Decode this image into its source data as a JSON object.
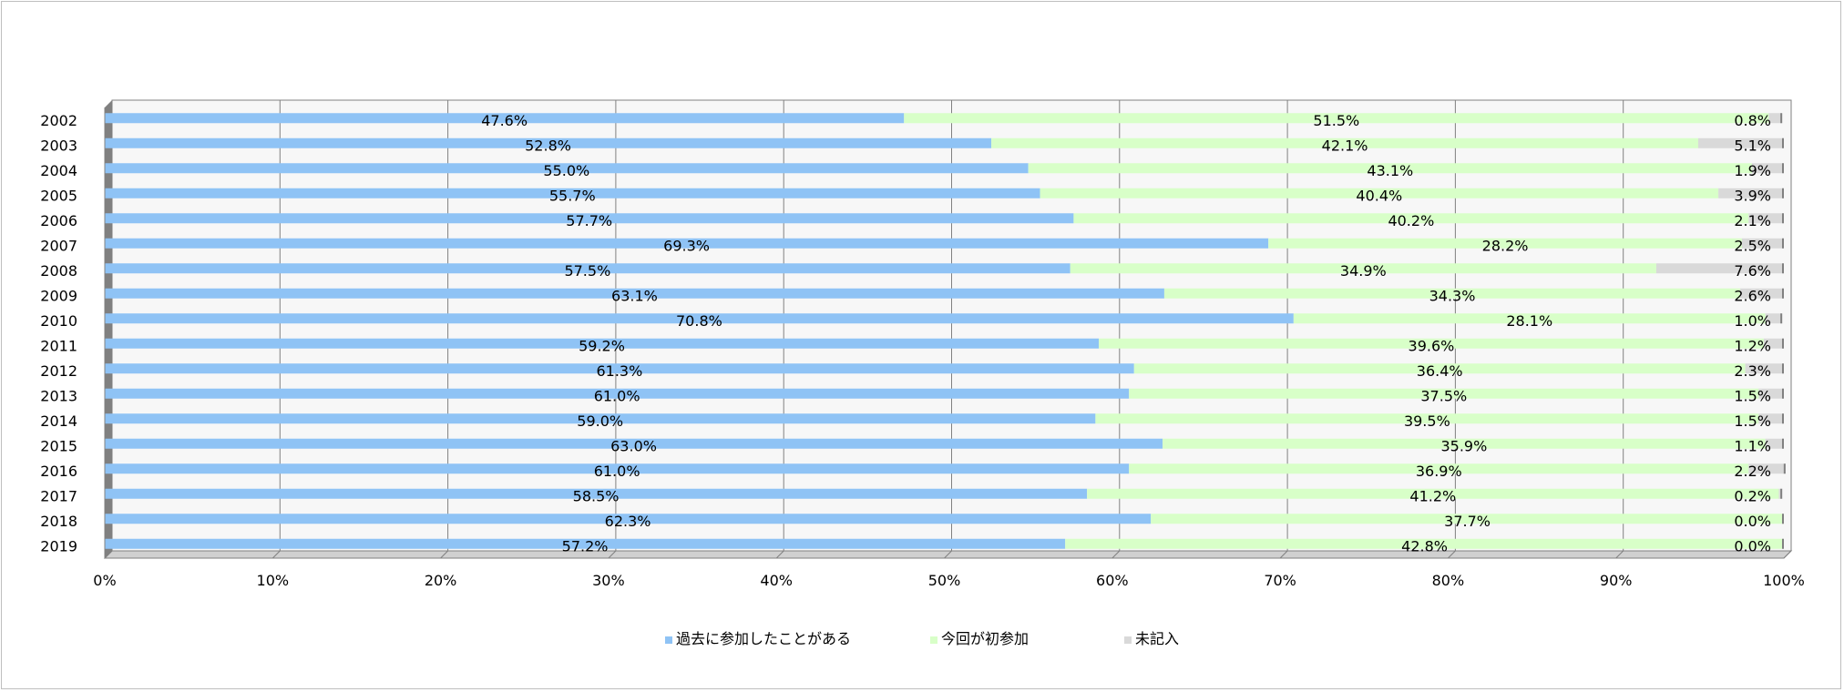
{
  "chart_data": {
    "type": "bar",
    "orientation": "horizontal",
    "stacking": "percent",
    "categories": [
      "2002",
      "2003",
      "2004",
      "2005",
      "2006",
      "2007",
      "2008",
      "2009",
      "2010",
      "2011",
      "2012",
      "2013",
      "2014",
      "2015",
      "2016",
      "2017",
      "2018",
      "2019"
    ],
    "series": [
      {
        "name": "過去に参加したことがある",
        "color": "#8fc3f5",
        "values": [
          47.6,
          52.8,
          55.0,
          55.7,
          57.7,
          69.3,
          57.5,
          63.1,
          70.8,
          59.2,
          61.3,
          61.0,
          59.0,
          63.0,
          61.0,
          58.5,
          62.3,
          57.2
        ],
        "labels": [
          "47.6%",
          "52.8%",
          "55.0%",
          "55.7%",
          "57.7%",
          "69.3%",
          "57.5%",
          "63.1%",
          "70.8%",
          "59.2%",
          "61.3%",
          "61.0%",
          "59.0%",
          "63.0%",
          "61.0%",
          "58.5%",
          "62.3%",
          "57.2%"
        ]
      },
      {
        "name": "今回が初参加",
        "color": "#d8ffc8",
        "values": [
          51.5,
          42.1,
          43.1,
          40.4,
          40.2,
          28.2,
          34.9,
          34.3,
          28.1,
          39.6,
          36.4,
          37.5,
          39.5,
          35.9,
          36.9,
          41.2,
          37.7,
          42.8
        ],
        "labels": [
          "51.5%",
          "42.1%",
          "43.1%",
          "40.4%",
          "40.2%",
          "28.2%",
          "34.9%",
          "34.3%",
          "28.1%",
          "39.6%",
          "36.4%",
          "37.5%",
          "39.5%",
          "35.9%",
          "36.9%",
          "41.2%",
          "37.7%",
          "42.8%"
        ]
      },
      {
        "name": "未記入",
        "color": "#d9d9d9",
        "values": [
          0.8,
          5.1,
          1.9,
          3.9,
          2.1,
          2.5,
          7.6,
          2.6,
          1.0,
          1.2,
          2.3,
          1.5,
          1.5,
          1.1,
          2.2,
          0.2,
          0.0,
          0.0
        ],
        "labels": [
          "0.8%",
          "5.1%",
          "1.9%",
          "3.9%",
          "2.1%",
          "2.5%",
          "7.6%",
          "2.6%",
          "1.0%",
          "1.2%",
          "2.3%",
          "1.5%",
          "1.5%",
          "1.1%",
          "2.2%",
          "0.2%",
          "0.0%",
          "0.0%"
        ]
      }
    ],
    "xticks": [
      "0%",
      "10%",
      "20%",
      "30%",
      "40%",
      "50%",
      "60%",
      "70%",
      "80%",
      "90%",
      "100%"
    ],
    "xlim": [
      0,
      100
    ],
    "grid": true,
    "legend_position": "bottom",
    "title": "",
    "xlabel": "",
    "ylabel": ""
  }
}
